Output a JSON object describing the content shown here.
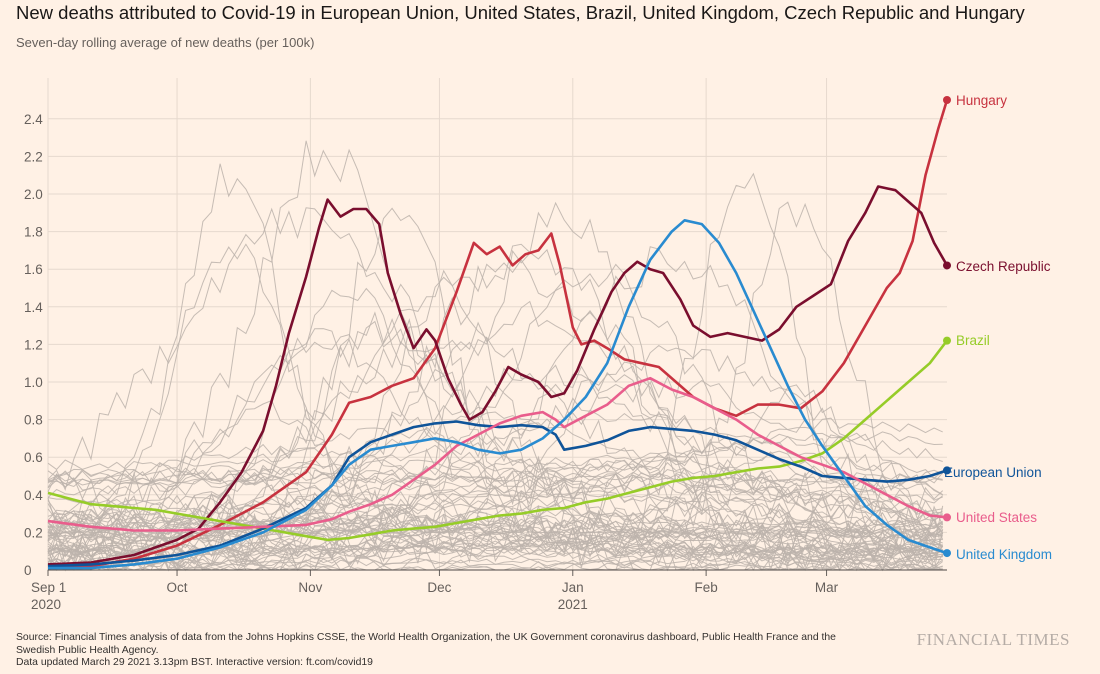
{
  "header": {
    "title": "New deaths attributed to Covid-19 in European Union, United States, Brazil, United Kingdom, Czech Republic and Hungary",
    "subtitle": "Seven-day rolling average of new deaths (per 100k)"
  },
  "footer": {
    "source": "Source: Financial Times analysis of data from the Johns Hopkins CSSE, the World Health Organization, the UK Government coronavirus dashboard, Public Health France and the Swedish Public Health Agency.",
    "updated": "Data updated March 29 2021 3.13pm BST. Interactive version: ft.com/covid19",
    "brand": "FINANCIAL TIMES"
  },
  "chart_data": {
    "type": "line",
    "title": "New deaths attributed to Covid-19 in European Union, United States, Brazil, United Kingdom, Czech Republic and Hungary",
    "ylabel": "Seven-day rolling average of new deaths (per 100k)",
    "xlabel": "",
    "x_domain_days": [
      0,
      209
    ],
    "x_note": "x values are days since Sep 1 2020",
    "ylim": [
      0,
      2.5
    ],
    "yticks": [
      0,
      0.2,
      0.4,
      0.6,
      0.8,
      1.0,
      1.2,
      1.4,
      1.6,
      1.8,
      2.0,
      2.2,
      2.4
    ],
    "ytick_labels": [
      "0",
      "0.2",
      "0.4",
      "0.6",
      "0.8",
      "1.0",
      "1.2",
      "1.4",
      "1.6",
      "1.8",
      "2.0",
      "2.2",
      "2.4"
    ],
    "xticks": [
      {
        "day": 0,
        "label": "Sep 1",
        "sub": "2020"
      },
      {
        "day": 30,
        "label": "Oct",
        "sub": ""
      },
      {
        "day": 61,
        "label": "Nov",
        "sub": ""
      },
      {
        "day": 91,
        "label": "Dec",
        "sub": ""
      },
      {
        "day": 122,
        "label": "Jan",
        "sub": "2021"
      },
      {
        "day": 153,
        "label": "Feb",
        "sub": ""
      },
      {
        "day": 181,
        "label": "Mar",
        "sub": ""
      }
    ],
    "grid": true,
    "background_series_note": "Many other countries shown as unlabeled grey lines",
    "series": [
      {
        "name": "Hungary",
        "label": "Hungary",
        "color": "#c7323f",
        "points": [
          [
            0,
            0.01
          ],
          [
            10,
            0.02
          ],
          [
            20,
            0.06
          ],
          [
            30,
            0.13
          ],
          [
            40,
            0.24
          ],
          [
            50,
            0.36
          ],
          [
            60,
            0.52
          ],
          [
            66,
            0.72
          ],
          [
            70,
            0.89
          ],
          [
            75,
            0.92
          ],
          [
            80,
            0.98
          ],
          [
            85,
            1.02
          ],
          [
            90,
            1.18
          ],
          [
            95,
            1.48
          ],
          [
            99,
            1.74
          ],
          [
            102,
            1.68
          ],
          [
            105,
            1.72
          ],
          [
            108,
            1.62
          ],
          [
            111,
            1.68
          ],
          [
            114,
            1.7
          ],
          [
            117,
            1.79
          ],
          [
            119,
            1.62
          ],
          [
            122,
            1.29
          ],
          [
            124,
            1.2
          ],
          [
            127,
            1.22
          ],
          [
            130,
            1.18
          ],
          [
            134,
            1.12
          ],
          [
            138,
            1.1
          ],
          [
            142,
            1.08
          ],
          [
            146,
            1.0
          ],
          [
            150,
            0.92
          ],
          [
            155,
            0.86
          ],
          [
            160,
            0.82
          ],
          [
            165,
            0.88
          ],
          [
            170,
            0.88
          ],
          [
            175,
            0.86
          ],
          [
            180,
            0.95
          ],
          [
            185,
            1.1
          ],
          [
            190,
            1.3
          ],
          [
            195,
            1.5
          ],
          [
            198,
            1.58
          ],
          [
            201,
            1.75
          ],
          [
            204,
            2.1
          ],
          [
            207,
            2.35
          ],
          [
            209,
            2.5
          ]
        ]
      },
      {
        "name": "Czech Republic",
        "label": "Czech Republic",
        "color": "#7a0e2e",
        "points": [
          [
            0,
            0.03
          ],
          [
            10,
            0.04
          ],
          [
            20,
            0.08
          ],
          [
            25,
            0.12
          ],
          [
            30,
            0.16
          ],
          [
            35,
            0.22
          ],
          [
            40,
            0.36
          ],
          [
            45,
            0.52
          ],
          [
            50,
            0.74
          ],
          [
            53,
            0.98
          ],
          [
            56,
            1.26
          ],
          [
            60,
            1.56
          ],
          [
            63,
            1.82
          ],
          [
            65,
            1.97
          ],
          [
            68,
            1.88
          ],
          [
            71,
            1.92
          ],
          [
            74,
            1.92
          ],
          [
            77,
            1.84
          ],
          [
            79,
            1.58
          ],
          [
            82,
            1.36
          ],
          [
            85,
            1.18
          ],
          [
            88,
            1.28
          ],
          [
            90,
            1.22
          ],
          [
            93,
            1.02
          ],
          [
            96,
            0.88
          ],
          [
            98,
            0.8
          ],
          [
            101,
            0.84
          ],
          [
            104,
            0.95
          ],
          [
            107,
            1.08
          ],
          [
            110,
            1.04
          ],
          [
            114,
            1.0
          ],
          [
            117,
            0.92
          ],
          [
            120,
            0.94
          ],
          [
            123,
            1.06
          ],
          [
            127,
            1.28
          ],
          [
            131,
            1.48
          ],
          [
            134,
            1.58
          ],
          [
            137,
            1.64
          ],
          [
            140,
            1.6
          ],
          [
            143,
            1.58
          ],
          [
            147,
            1.44
          ],
          [
            150,
            1.3
          ],
          [
            154,
            1.24
          ],
          [
            158,
            1.26
          ],
          [
            162,
            1.24
          ],
          [
            166,
            1.22
          ],
          [
            170,
            1.28
          ],
          [
            174,
            1.4
          ],
          [
            178,
            1.46
          ],
          [
            182,
            1.52
          ],
          [
            186,
            1.75
          ],
          [
            190,
            1.9
          ],
          [
            193,
            2.04
          ],
          [
            197,
            2.02
          ],
          [
            200,
            1.96
          ],
          [
            203,
            1.9
          ],
          [
            206,
            1.74
          ],
          [
            209,
            1.62
          ]
        ]
      },
      {
        "name": "Brazil",
        "label": "Brazil",
        "color": "#96cc28",
        "points": [
          [
            0,
            0.41
          ],
          [
            5,
            0.38
          ],
          [
            10,
            0.35
          ],
          [
            15,
            0.34
          ],
          [
            20,
            0.33
          ],
          [
            25,
            0.32
          ],
          [
            30,
            0.3
          ],
          [
            35,
            0.28
          ],
          [
            40,
            0.26
          ],
          [
            45,
            0.24
          ],
          [
            50,
            0.22
          ],
          [
            55,
            0.2
          ],
          [
            60,
            0.18
          ],
          [
            65,
            0.16
          ],
          [
            70,
            0.17
          ],
          [
            75,
            0.19
          ],
          [
            80,
            0.21
          ],
          [
            85,
            0.22
          ],
          [
            90,
            0.23
          ],
          [
            95,
            0.25
          ],
          [
            100,
            0.27
          ],
          [
            105,
            0.29
          ],
          [
            110,
            0.3
          ],
          [
            115,
            0.32
          ],
          [
            120,
            0.33
          ],
          [
            125,
            0.36
          ],
          [
            130,
            0.38
          ],
          [
            135,
            0.41
          ],
          [
            140,
            0.44
          ],
          [
            145,
            0.47
          ],
          [
            150,
            0.49
          ],
          [
            155,
            0.5
          ],
          [
            160,
            0.52
          ],
          [
            165,
            0.54
          ],
          [
            170,
            0.55
          ],
          [
            175,
            0.58
          ],
          [
            180,
            0.62
          ],
          [
            185,
            0.7
          ],
          [
            190,
            0.8
          ],
          [
            195,
            0.9
          ],
          [
            200,
            1.0
          ],
          [
            205,
            1.1
          ],
          [
            209,
            1.22
          ]
        ]
      },
      {
        "name": "European Union",
        "label": "European Union",
        "color": "#0f5499",
        "points": [
          [
            0,
            0.02
          ],
          [
            10,
            0.03
          ],
          [
            20,
            0.05
          ],
          [
            30,
            0.08
          ],
          [
            40,
            0.13
          ],
          [
            50,
            0.22
          ],
          [
            60,
            0.33
          ],
          [
            66,
            0.45
          ],
          [
            70,
            0.6
          ],
          [
            75,
            0.68
          ],
          [
            80,
            0.72
          ],
          [
            85,
            0.76
          ],
          [
            90,
            0.78
          ],
          [
            95,
            0.79
          ],
          [
            100,
            0.77
          ],
          [
            105,
            0.76
          ],
          [
            110,
            0.77
          ],
          [
            115,
            0.76
          ],
          [
            118,
            0.72
          ],
          [
            120,
            0.64
          ],
          [
            125,
            0.66
          ],
          [
            130,
            0.69
          ],
          [
            135,
            0.74
          ],
          [
            140,
            0.76
          ],
          [
            145,
            0.75
          ],
          [
            150,
            0.74
          ],
          [
            155,
            0.72
          ],
          [
            160,
            0.69
          ],
          [
            165,
            0.64
          ],
          [
            170,
            0.59
          ],
          [
            175,
            0.55
          ],
          [
            180,
            0.5
          ],
          [
            185,
            0.49
          ],
          [
            190,
            0.48
          ],
          [
            195,
            0.47
          ],
          [
            200,
            0.48
          ],
          [
            205,
            0.5
          ],
          [
            209,
            0.53
          ]
        ]
      },
      {
        "name": "United States",
        "label": "United States",
        "color": "#e95d8c",
        "points": [
          [
            0,
            0.26
          ],
          [
            10,
            0.23
          ],
          [
            20,
            0.21
          ],
          [
            30,
            0.21
          ],
          [
            40,
            0.22
          ],
          [
            50,
            0.23
          ],
          [
            60,
            0.24
          ],
          [
            66,
            0.27
          ],
          [
            70,
            0.31
          ],
          [
            75,
            0.35
          ],
          [
            80,
            0.4
          ],
          [
            85,
            0.48
          ],
          [
            90,
            0.56
          ],
          [
            95,
            0.66
          ],
          [
            100,
            0.72
          ],
          [
            105,
            0.78
          ],
          [
            110,
            0.82
          ],
          [
            115,
            0.84
          ],
          [
            118,
            0.8
          ],
          [
            120,
            0.76
          ],
          [
            125,
            0.82
          ],
          [
            130,
            0.88
          ],
          [
            135,
            0.98
          ],
          [
            140,
            1.02
          ],
          [
            145,
            0.96
          ],
          [
            150,
            0.92
          ],
          [
            155,
            0.86
          ],
          [
            160,
            0.8
          ],
          [
            165,
            0.72
          ],
          [
            170,
            0.66
          ],
          [
            175,
            0.6
          ],
          [
            180,
            0.56
          ],
          [
            185,
            0.52
          ],
          [
            190,
            0.46
          ],
          [
            195,
            0.4
          ],
          [
            200,
            0.34
          ],
          [
            205,
            0.29
          ],
          [
            209,
            0.28
          ]
        ]
      },
      {
        "name": "United Kingdom",
        "label": "United Kingdom",
        "color": "#298bd0",
        "points": [
          [
            0,
            0.01
          ],
          [
            10,
            0.01
          ],
          [
            20,
            0.03
          ],
          [
            30,
            0.06
          ],
          [
            40,
            0.12
          ],
          [
            50,
            0.2
          ],
          [
            60,
            0.32
          ],
          [
            66,
            0.45
          ],
          [
            70,
            0.56
          ],
          [
            75,
            0.64
          ],
          [
            80,
            0.66
          ],
          [
            85,
            0.68
          ],
          [
            90,
            0.7
          ],
          [
            95,
            0.68
          ],
          [
            100,
            0.64
          ],
          [
            105,
            0.62
          ],
          [
            110,
            0.64
          ],
          [
            115,
            0.7
          ],
          [
            120,
            0.8
          ],
          [
            125,
            0.92
          ],
          [
            130,
            1.1
          ],
          [
            135,
            1.4
          ],
          [
            140,
            1.65
          ],
          [
            145,
            1.8
          ],
          [
            148,
            1.86
          ],
          [
            152,
            1.84
          ],
          [
            156,
            1.74
          ],
          [
            160,
            1.58
          ],
          [
            164,
            1.38
          ],
          [
            168,
            1.18
          ],
          [
            172,
            0.98
          ],
          [
            176,
            0.8
          ],
          [
            180,
            0.66
          ],
          [
            185,
            0.5
          ],
          [
            190,
            0.34
          ],
          [
            195,
            0.24
          ],
          [
            200,
            0.16
          ],
          [
            205,
            0.12
          ],
          [
            209,
            0.09
          ]
        ]
      }
    ],
    "series_labels": [
      "Hungary",
      "Czech Republic",
      "Brazil",
      "European Union",
      "United States",
      "United Kingdom"
    ]
  }
}
